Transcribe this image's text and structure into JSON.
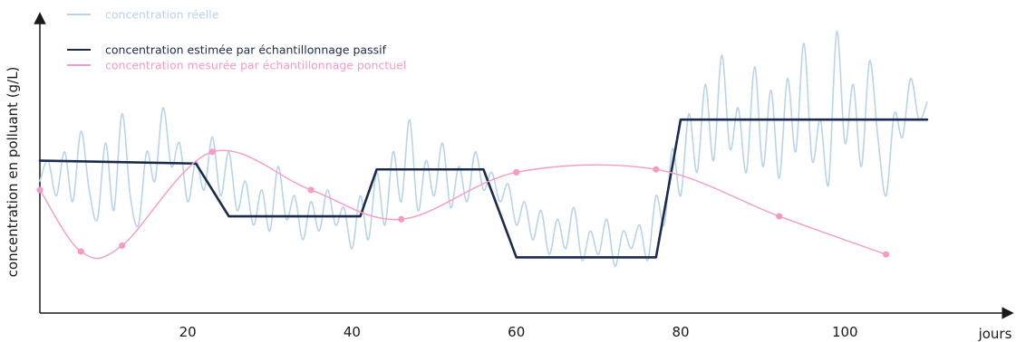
{
  "chart_data": {
    "type": "line",
    "title": "",
    "xlabel": "jours",
    "ylabel": "concentration en polluant (g/L)",
    "xlim": [
      2,
      111
    ],
    "ylim": [
      0,
      100
    ],
    "x_ticks": [
      20,
      40,
      60,
      80,
      100
    ],
    "y_ticks": [],
    "grid": false,
    "legend_position": "top-left",
    "series": [
      {
        "name": "concentration réelle",
        "color": "#b9d4ea",
        "style": "smooth",
        "points": [
          [
            2,
            45
          ],
          [
            3,
            52
          ],
          [
            4,
            40
          ],
          [
            5,
            55
          ],
          [
            6,
            38
          ],
          [
            7,
            62
          ],
          [
            8,
            42
          ],
          [
            9,
            32
          ],
          [
            10,
            58
          ],
          [
            11,
            35
          ],
          [
            12,
            68
          ],
          [
            13,
            40
          ],
          [
            14,
            30
          ],
          [
            15,
            55
          ],
          [
            16,
            45
          ],
          [
            17,
            70
          ],
          [
            18,
            50
          ],
          [
            19,
            58
          ],
          [
            20,
            38
          ],
          [
            21,
            52
          ],
          [
            22,
            42
          ],
          [
            23,
            60
          ],
          [
            24,
            40
          ],
          [
            25,
            55
          ],
          [
            26,
            35
          ],
          [
            27,
            45
          ],
          [
            28,
            30
          ],
          [
            29,
            42
          ],
          [
            30,
            28
          ],
          [
            31,
            50
          ],
          [
            32,
            32
          ],
          [
            33,
            40
          ],
          [
            34,
            25
          ],
          [
            35,
            38
          ],
          [
            36,
            28
          ],
          [
            37,
            42
          ],
          [
            38,
            30
          ],
          [
            39,
            36
          ],
          [
            40,
            22
          ],
          [
            41,
            40
          ],
          [
            42,
            25
          ],
          [
            43,
            48
          ],
          [
            44,
            30
          ],
          [
            45,
            55
          ],
          [
            46,
            38
          ],
          [
            47,
            66
          ],
          [
            48,
            35
          ],
          [
            49,
            52
          ],
          [
            50,
            40
          ],
          [
            51,
            58
          ],
          [
            52,
            36
          ],
          [
            53,
            50
          ],
          [
            54,
            38
          ],
          [
            55,
            55
          ],
          [
            56,
            42
          ],
          [
            57,
            48
          ],
          [
            58,
            38
          ],
          [
            59,
            44
          ],
          [
            60,
            30
          ],
          [
            61,
            38
          ],
          [
            62,
            25
          ],
          [
            63,
            35
          ],
          [
            64,
            20
          ],
          [
            65,
            32
          ],
          [
            66,
            22
          ],
          [
            67,
            36
          ],
          [
            68,
            18
          ],
          [
            69,
            28
          ],
          [
            70,
            20
          ],
          [
            71,
            32
          ],
          [
            72,
            16
          ],
          [
            73,
            28
          ],
          [
            74,
            22
          ],
          [
            75,
            30
          ],
          [
            76,
            18
          ],
          [
            77,
            40
          ],
          [
            78,
            30
          ],
          [
            79,
            56
          ],
          [
            80,
            40
          ],
          [
            81,
            68
          ],
          [
            82,
            48
          ],
          [
            83,
            78
          ],
          [
            84,
            52
          ],
          [
            85,
            88
          ],
          [
            86,
            56
          ],
          [
            87,
            70
          ],
          [
            88,
            48
          ],
          [
            89,
            84
          ],
          [
            90,
            50
          ],
          [
            91,
            76
          ],
          [
            92,
            46
          ],
          [
            93,
            80
          ],
          [
            94,
            55
          ],
          [
            95,
            92
          ],
          [
            96,
            52
          ],
          [
            97,
            66
          ],
          [
            98,
            44
          ],
          [
            99,
            96
          ],
          [
            100,
            58
          ],
          [
            101,
            78
          ],
          [
            102,
            50
          ],
          [
            103,
            86
          ],
          [
            104,
            60
          ],
          [
            105,
            40
          ],
          [
            106,
            68
          ],
          [
            107,
            60
          ],
          [
            108,
            80
          ],
          [
            109,
            66
          ],
          [
            110,
            72
          ]
        ]
      },
      {
        "name": "concentration estimée par échantillonnage passif",
        "color": "#1b2b4e",
        "style": "linear",
        "points": [
          [
            2,
            52
          ],
          [
            21,
            51
          ],
          [
            25,
            33
          ],
          [
            41,
            33
          ],
          [
            43,
            49
          ],
          [
            56,
            49
          ],
          [
            60,
            19
          ],
          [
            77,
            19
          ],
          [
            80,
            66
          ],
          [
            110,
            66
          ]
        ]
      },
      {
        "name": "concentration mesurée par échantillonnage ponctuel",
        "color": "#f49cc4",
        "style": "smooth",
        "points": [
          [
            2,
            42
          ],
          [
            7,
            21
          ],
          [
            12,
            23
          ],
          [
            23,
            55
          ],
          [
            35,
            42
          ],
          [
            46,
            32
          ],
          [
            60,
            48
          ],
          [
            77,
            49
          ],
          [
            92,
            33
          ],
          [
            105,
            20
          ]
        ]
      }
    ]
  }
}
